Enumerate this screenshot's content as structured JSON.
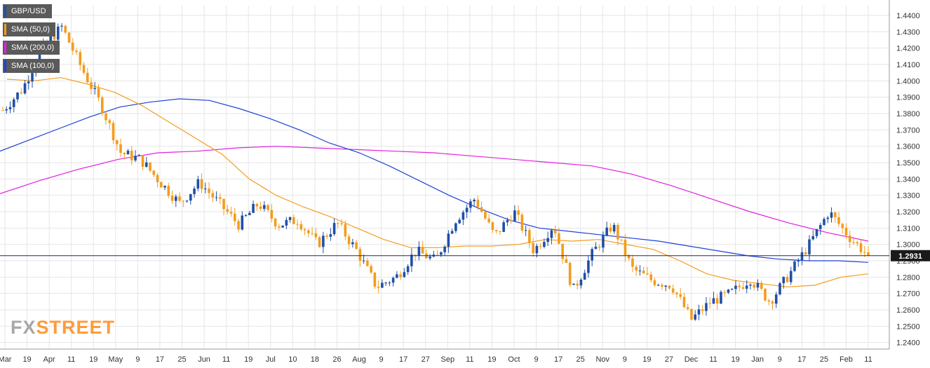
{
  "legend": [
    {
      "label": "GBP/USD",
      "color": "#1f4fa8"
    },
    {
      "label": "SMA (50,0)",
      "color": "#f39c1e"
    },
    {
      "label": "SMA (200,0)",
      "color": "#e020e0"
    },
    {
      "label": "SMA (100,0)",
      "color": "#1f3fd8"
    }
  ],
  "logo": {
    "fx": "FX",
    "street": "STREET"
  },
  "colors": {
    "bullish": "#1f4fa8",
    "bearish": "#f39c1e",
    "grid": "#e6e6e6",
    "current_line": "#1a2a5a",
    "price_tag": "#1a1a1a"
  },
  "chart_data": {
    "type": "candlestick",
    "symbol": "GBP/USD",
    "ylim": [
      1.236,
      1.446
    ],
    "yticks": [
      "1.4400",
      "1.4300",
      "1.4200",
      "1.4100",
      "1.4000",
      "1.3900",
      "1.3800",
      "1.3700",
      "1.3600",
      "1.3500",
      "1.3400",
      "1.3300",
      "1.3200",
      "1.3100",
      "1.3000",
      "1.2900",
      "1.2800",
      "1.2700",
      "1.2600",
      "1.2500",
      "1.2400"
    ],
    "xticks": [
      "Mar",
      "19",
      "Apr",
      "11",
      "19",
      "May",
      "9",
      "17",
      "25",
      "Jun",
      "11",
      "19",
      "Jul",
      "10",
      "18",
      "26",
      "Aug",
      "9",
      "17",
      "27",
      "Sep",
      "11",
      "19",
      "Oct",
      "9",
      "17",
      "25",
      "Nov",
      "9",
      "19",
      "27",
      "Dec",
      "11",
      "19",
      "Jan",
      "9",
      "17",
      "25",
      "Feb",
      "11"
    ],
    "current_price": "1.2931",
    "price_anchors": [
      1.382,
      1.395,
      1.42,
      1.433,
      1.408,
      1.385,
      1.356,
      1.352,
      1.338,
      1.325,
      1.338,
      1.325,
      1.312,
      1.325,
      1.312,
      1.315,
      1.3,
      1.313,
      1.296,
      1.274,
      1.28,
      1.296,
      1.29,
      1.315,
      1.328,
      1.305,
      1.32,
      1.296,
      1.312,
      1.272,
      1.295,
      1.312,
      1.285,
      1.278,
      1.275,
      1.254,
      1.265,
      1.27,
      1.279,
      1.265,
      1.282,
      1.3,
      1.32,
      1.305,
      1.2931
    ],
    "sma50": [
      1.401,
      1.4,
      1.402,
      1.398,
      1.393,
      1.385,
      1.375,
      1.365,
      1.355,
      1.34,
      1.33,
      1.323,
      1.317,
      1.31,
      1.303,
      1.298,
      1.298,
      1.299,
      1.299,
      1.3,
      1.303,
      1.302,
      1.303,
      1.3,
      1.297,
      1.29,
      1.282,
      1.278,
      1.276,
      1.274,
      1.275,
      1.28,
      1.282
    ],
    "sma100": [
      1.357,
      1.364,
      1.371,
      1.378,
      1.384,
      1.387,
      1.389,
      1.388,
      1.383,
      1.377,
      1.37,
      1.362,
      1.356,
      1.348,
      1.339,
      1.33,
      1.322,
      1.315,
      1.31,
      1.308,
      1.306,
      1.304,
      1.302,
      1.299,
      1.296,
      1.293,
      1.291,
      1.29,
      1.29,
      1.289
    ],
    "sma200": [
      1.331,
      1.339,
      1.346,
      1.352,
      1.356,
      1.357,
      1.359,
      1.36,
      1.359,
      1.358,
      1.357,
      1.356,
      1.354,
      1.352,
      1.35,
      1.348,
      1.343,
      1.336,
      1.328,
      1.32,
      1.313,
      1.307,
      1.302
    ]
  }
}
